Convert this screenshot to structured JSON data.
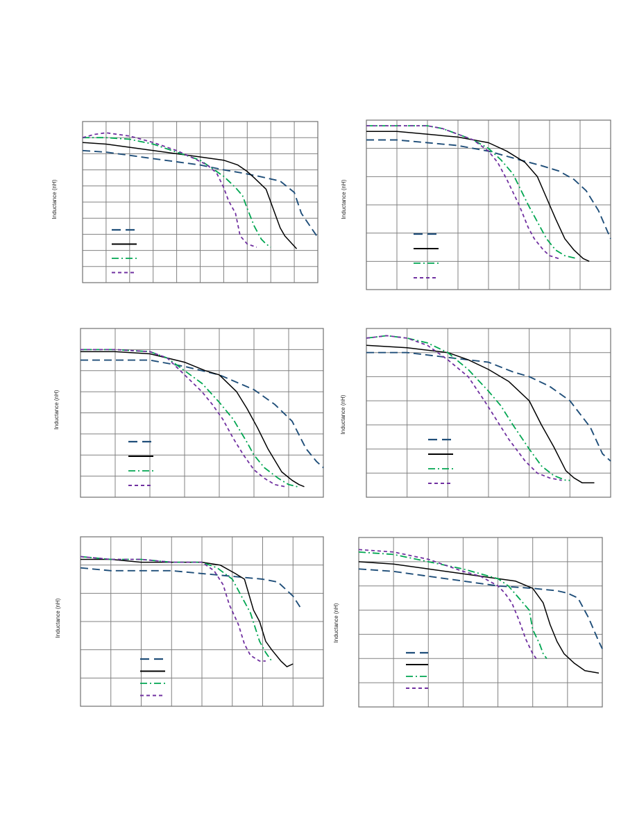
{
  "colors": {
    "grid": "#808080",
    "series": [
      "#1f4e79",
      "#000000",
      "#00a651",
      "#7030a0"
    ]
  },
  "chart_data": [
    {
      "type": "line",
      "ylabel": "Inductance (nH)",
      "legend": "bottom-left",
      "grid": true,
      "xlim": [
        0,
        10
      ],
      "ylim": [
        0,
        10
      ],
      "series": [
        {
          "x": [
            0,
            1,
            2,
            3,
            4,
            5,
            6,
            6.8,
            7.5,
            8.4,
            9,
            9.3,
            10
          ],
          "y": [
            8.2,
            8.1,
            7.9,
            7.7,
            7.5,
            7.3,
            7.0,
            6.8,
            6.6,
            6.3,
            5.6,
            4.3,
            2.8
          ]
        },
        {
          "x": [
            0,
            1,
            2,
            3,
            4,
            5,
            6,
            6.6,
            7,
            7.3,
            7.8,
            8.2,
            8.4,
            8.6,
            9.1
          ],
          "y": [
            8.7,
            8.6,
            8.4,
            8.2,
            8.0,
            7.8,
            7.6,
            7.3,
            6.9,
            6.5,
            5.8,
            4.2,
            3.4,
            2.9,
            2.1
          ]
        },
        {
          "x": [
            0,
            1,
            2,
            3,
            4,
            5,
            5.6,
            6,
            6.5,
            6.8,
            7,
            7.3,
            7.6,
            7.8,
            8.0
          ],
          "y": [
            9.0,
            9.0,
            8.9,
            8.6,
            8.1,
            7.6,
            7.0,
            6.6,
            5.9,
            5.4,
            4.6,
            3.5,
            2.7,
            2.4,
            2.2
          ]
        },
        {
          "x": [
            0,
            0.5,
            1,
            2,
            3,
            4,
            4.6,
            5.3,
            5.7,
            6,
            6.2,
            6.5,
            6.7,
            7.0,
            7.4
          ],
          "y": [
            9.0,
            9.2,
            9.3,
            9.1,
            8.7,
            8.2,
            7.8,
            7.3,
            6.8,
            5.9,
            5.1,
            4.3,
            2.9,
            2.4,
            2.2
          ]
        }
      ]
    },
    {
      "type": "line",
      "ylabel": "Inductance (nH)",
      "legend": "bottom-left",
      "grid": true,
      "xlim": [
        0,
        8
      ],
      "ylim": [
        0,
        6
      ],
      "series": [
        {
          "x": [
            0,
            1,
            2,
            3,
            4,
            5,
            5.7,
            6.3,
            6.8,
            7.2,
            7.6,
            8.0
          ],
          "y": [
            5.3,
            5.3,
            5.2,
            5.1,
            4.9,
            4.6,
            4.4,
            4.2,
            3.9,
            3.5,
            2.8,
            1.8
          ]
        },
        {
          "x": [
            0,
            1,
            2,
            3,
            4,
            4.6,
            5.2,
            5.6,
            6.0,
            6.2,
            6.5,
            6.8,
            7.1,
            7.3
          ],
          "y": [
            5.6,
            5.6,
            5.5,
            5.4,
            5.2,
            4.9,
            4.5,
            4.0,
            3.0,
            2.5,
            1.8,
            1.4,
            1.1,
            1.0
          ]
        },
        {
          "x": [
            0,
            1,
            2,
            2.5,
            3,
            3.5,
            4,
            4.4,
            4.8,
            5.3,
            5.6,
            5.9,
            6.2,
            6.5,
            6.9
          ],
          "y": [
            5.8,
            5.8,
            5.8,
            5.7,
            5.5,
            5.3,
            5.0,
            4.6,
            4.1,
            3.0,
            2.4,
            1.8,
            1.4,
            1.2,
            1.1
          ]
        },
        {
          "x": [
            0,
            1,
            2,
            2.5,
            3,
            3.5,
            4,
            4.3,
            4.6,
            5.0,
            5.3,
            5.5,
            5.8,
            6.0,
            6.3
          ],
          "y": [
            5.8,
            5.8,
            5.8,
            5.7,
            5.5,
            5.3,
            4.9,
            4.5,
            3.9,
            3.0,
            2.2,
            1.8,
            1.4,
            1.2,
            1.1
          ]
        }
      ]
    },
    {
      "type": "line",
      "ylabel": "Inductance (nH)",
      "legend": "bottom-left",
      "grid": true,
      "xlim": [
        0,
        7
      ],
      "ylim": [
        0,
        8
      ],
      "series": [
        {
          "x": [
            0,
            1,
            2,
            3,
            4,
            5,
            5.6,
            6.1,
            6.5,
            6.8,
            7.0
          ],
          "y": [
            6.5,
            6.5,
            6.5,
            6.2,
            5.8,
            5.1,
            4.4,
            3.6,
            2.3,
            1.7,
            1.4
          ]
        },
        {
          "x": [
            0,
            1,
            2,
            3,
            3.6,
            4,
            4.5,
            4.8,
            5.1,
            5.4,
            5.8,
            6.1,
            6.3,
            6.45
          ],
          "y": [
            6.9,
            6.9,
            6.8,
            6.4,
            6.0,
            5.8,
            5.0,
            4.2,
            3.3,
            2.3,
            1.2,
            0.8,
            0.6,
            0.5
          ]
        },
        {
          "x": [
            0,
            1,
            2,
            2.5,
            3,
            3.5,
            4,
            4.4,
            4.8,
            5.0,
            5.3,
            5.7,
            6.0,
            6.25
          ],
          "y": [
            7.0,
            7.0,
            6.9,
            6.6,
            6.0,
            5.4,
            4.5,
            3.7,
            2.6,
            2.0,
            1.4,
            0.9,
            0.6,
            0.5
          ]
        },
        {
          "x": [
            0,
            1,
            2,
            2.5,
            3,
            3.5,
            3.8,
            4.1,
            4.4,
            4.7,
            5.0,
            5.3,
            5.6,
            5.9
          ],
          "y": [
            7.0,
            7.0,
            6.9,
            6.6,
            5.8,
            5.0,
            4.4,
            3.7,
            2.8,
            2.0,
            1.3,
            0.9,
            0.6,
            0.5
          ]
        }
      ]
    },
    {
      "type": "line",
      "ylabel": "Inductance (nH)",
      "legend": "bottom-left",
      "grid": true,
      "xlim": [
        0,
        6
      ],
      "ylim": [
        0,
        7
      ],
      "series": [
        {
          "x": [
            0,
            1,
            2,
            3,
            3.6,
            4,
            4.5,
            5.0,
            5.5,
            5.8,
            6.0
          ],
          "y": [
            6.0,
            6.0,
            5.8,
            5.6,
            5.2,
            5.0,
            4.6,
            4.0,
            2.9,
            1.8,
            1.5
          ]
        },
        {
          "x": [
            0,
            1,
            2,
            2.5,
            3,
            3.5,
            4,
            4.3,
            4.6,
            4.9,
            5.1,
            5.3,
            5.6
          ],
          "y": [
            6.3,
            6.2,
            6.0,
            5.7,
            5.3,
            4.8,
            4.0,
            3.0,
            2.1,
            1.1,
            0.8,
            0.6,
            0.6
          ]
        },
        {
          "x": [
            0,
            0.5,
            1,
            1.5,
            2,
            2.5,
            3,
            3.3,
            3.6,
            4.0,
            4.3,
            4.6,
            4.9,
            5.0
          ],
          "y": [
            6.6,
            6.7,
            6.6,
            6.4,
            6.0,
            5.3,
            4.4,
            3.8,
            3.0,
            2.0,
            1.3,
            0.9,
            0.7,
            0.7
          ]
        },
        {
          "x": [
            0,
            0.5,
            1,
            1.5,
            2,
            2.5,
            2.9,
            3.2,
            3.5,
            3.9,
            4.2,
            4.5,
            4.8
          ],
          "y": [
            6.6,
            6.7,
            6.6,
            6.3,
            5.7,
            5.0,
            4.0,
            3.2,
            2.4,
            1.5,
            1.0,
            0.8,
            0.7
          ]
        }
      ]
    },
    {
      "type": "line",
      "ylabel": "Inductance (nH)",
      "legend": "bottom-left",
      "grid": true,
      "xlim": [
        0,
        8
      ],
      "ylim": [
        0,
        6
      ],
      "series": [
        {
          "x": [
            0,
            1,
            2,
            3,
            4,
            5,
            6,
            6.5,
            7,
            7.3
          ],
          "y": [
            4.9,
            4.8,
            4.8,
            4.8,
            4.7,
            4.6,
            4.5,
            4.4,
            3.9,
            3.4
          ]
        },
        {
          "x": [
            0,
            1,
            2,
            3,
            4,
            4.6,
            5.1,
            5.4,
            5.7,
            5.9,
            6.1,
            6.3,
            6.6,
            6.8,
            7.0
          ],
          "y": [
            5.2,
            5.2,
            5.1,
            5.1,
            5.1,
            5.0,
            4.7,
            4.5,
            3.4,
            3.0,
            2.3,
            2.0,
            1.6,
            1.4,
            1.5
          ]
        },
        {
          "x": [
            0,
            1,
            2,
            3,
            4,
            4.5,
            5.0,
            5.3,
            5.6,
            5.9,
            6.1,
            6.3
          ],
          "y": [
            5.3,
            5.2,
            5.2,
            5.1,
            5.1,
            4.9,
            4.5,
            3.9,
            3.3,
            2.3,
            1.9,
            1.6
          ]
        },
        {
          "x": [
            0,
            1,
            2,
            3,
            4,
            4.4,
            4.7,
            4.9,
            5.2,
            5.4,
            5.6,
            5.9,
            6.1
          ],
          "y": [
            5.3,
            5.2,
            5.2,
            5.1,
            5.1,
            4.8,
            4.3,
            3.6,
            2.9,
            2.2,
            1.8,
            1.6,
            1.6
          ]
        }
      ]
    },
    {
      "type": "line",
      "ylabel": "Inductance (nH)",
      "legend": "bottom-left",
      "grid": true,
      "xlim": [
        0,
        7
      ],
      "ylim": [
        0,
        7
      ],
      "series": [
        {
          "x": [
            0,
            1,
            2,
            3,
            4,
            5,
            5.7,
            6,
            6.3,
            6.6,
            6.9,
            7.0
          ],
          "y": [
            5.7,
            5.6,
            5.4,
            5.2,
            5.0,
            4.9,
            4.8,
            4.7,
            4.5,
            3.7,
            2.7,
            2.4
          ]
        },
        {
          "x": [
            0,
            1,
            2,
            3,
            4,
            4.5,
            5,
            5.3,
            5.5,
            5.7,
            5.9,
            6.2,
            6.5,
            6.9
          ],
          "y": [
            6.0,
            5.9,
            5.7,
            5.5,
            5.3,
            5.2,
            4.9,
            4.3,
            3.4,
            2.7,
            2.2,
            1.8,
            1.5,
            1.4
          ]
        },
        {
          "x": [
            0,
            1,
            2,
            3,
            3.5,
            4,
            4.3,
            4.6,
            4.9,
            5.0,
            5.2,
            5.3,
            5.4
          ],
          "y": [
            6.4,
            6.3,
            6.0,
            5.7,
            5.5,
            5.3,
            5.0,
            4.5,
            4.0,
            3.2,
            2.6,
            2.2,
            2.0
          ]
        },
        {
          "x": [
            0,
            1,
            2,
            3,
            3.5,
            4,
            4.2,
            4.4,
            4.6,
            4.8,
            5.0,
            5.1
          ],
          "y": [
            6.5,
            6.4,
            6.1,
            5.6,
            5.4,
            5.0,
            4.7,
            4.3,
            3.6,
            2.8,
            2.2,
            2.0
          ]
        }
      ]
    }
  ]
}
